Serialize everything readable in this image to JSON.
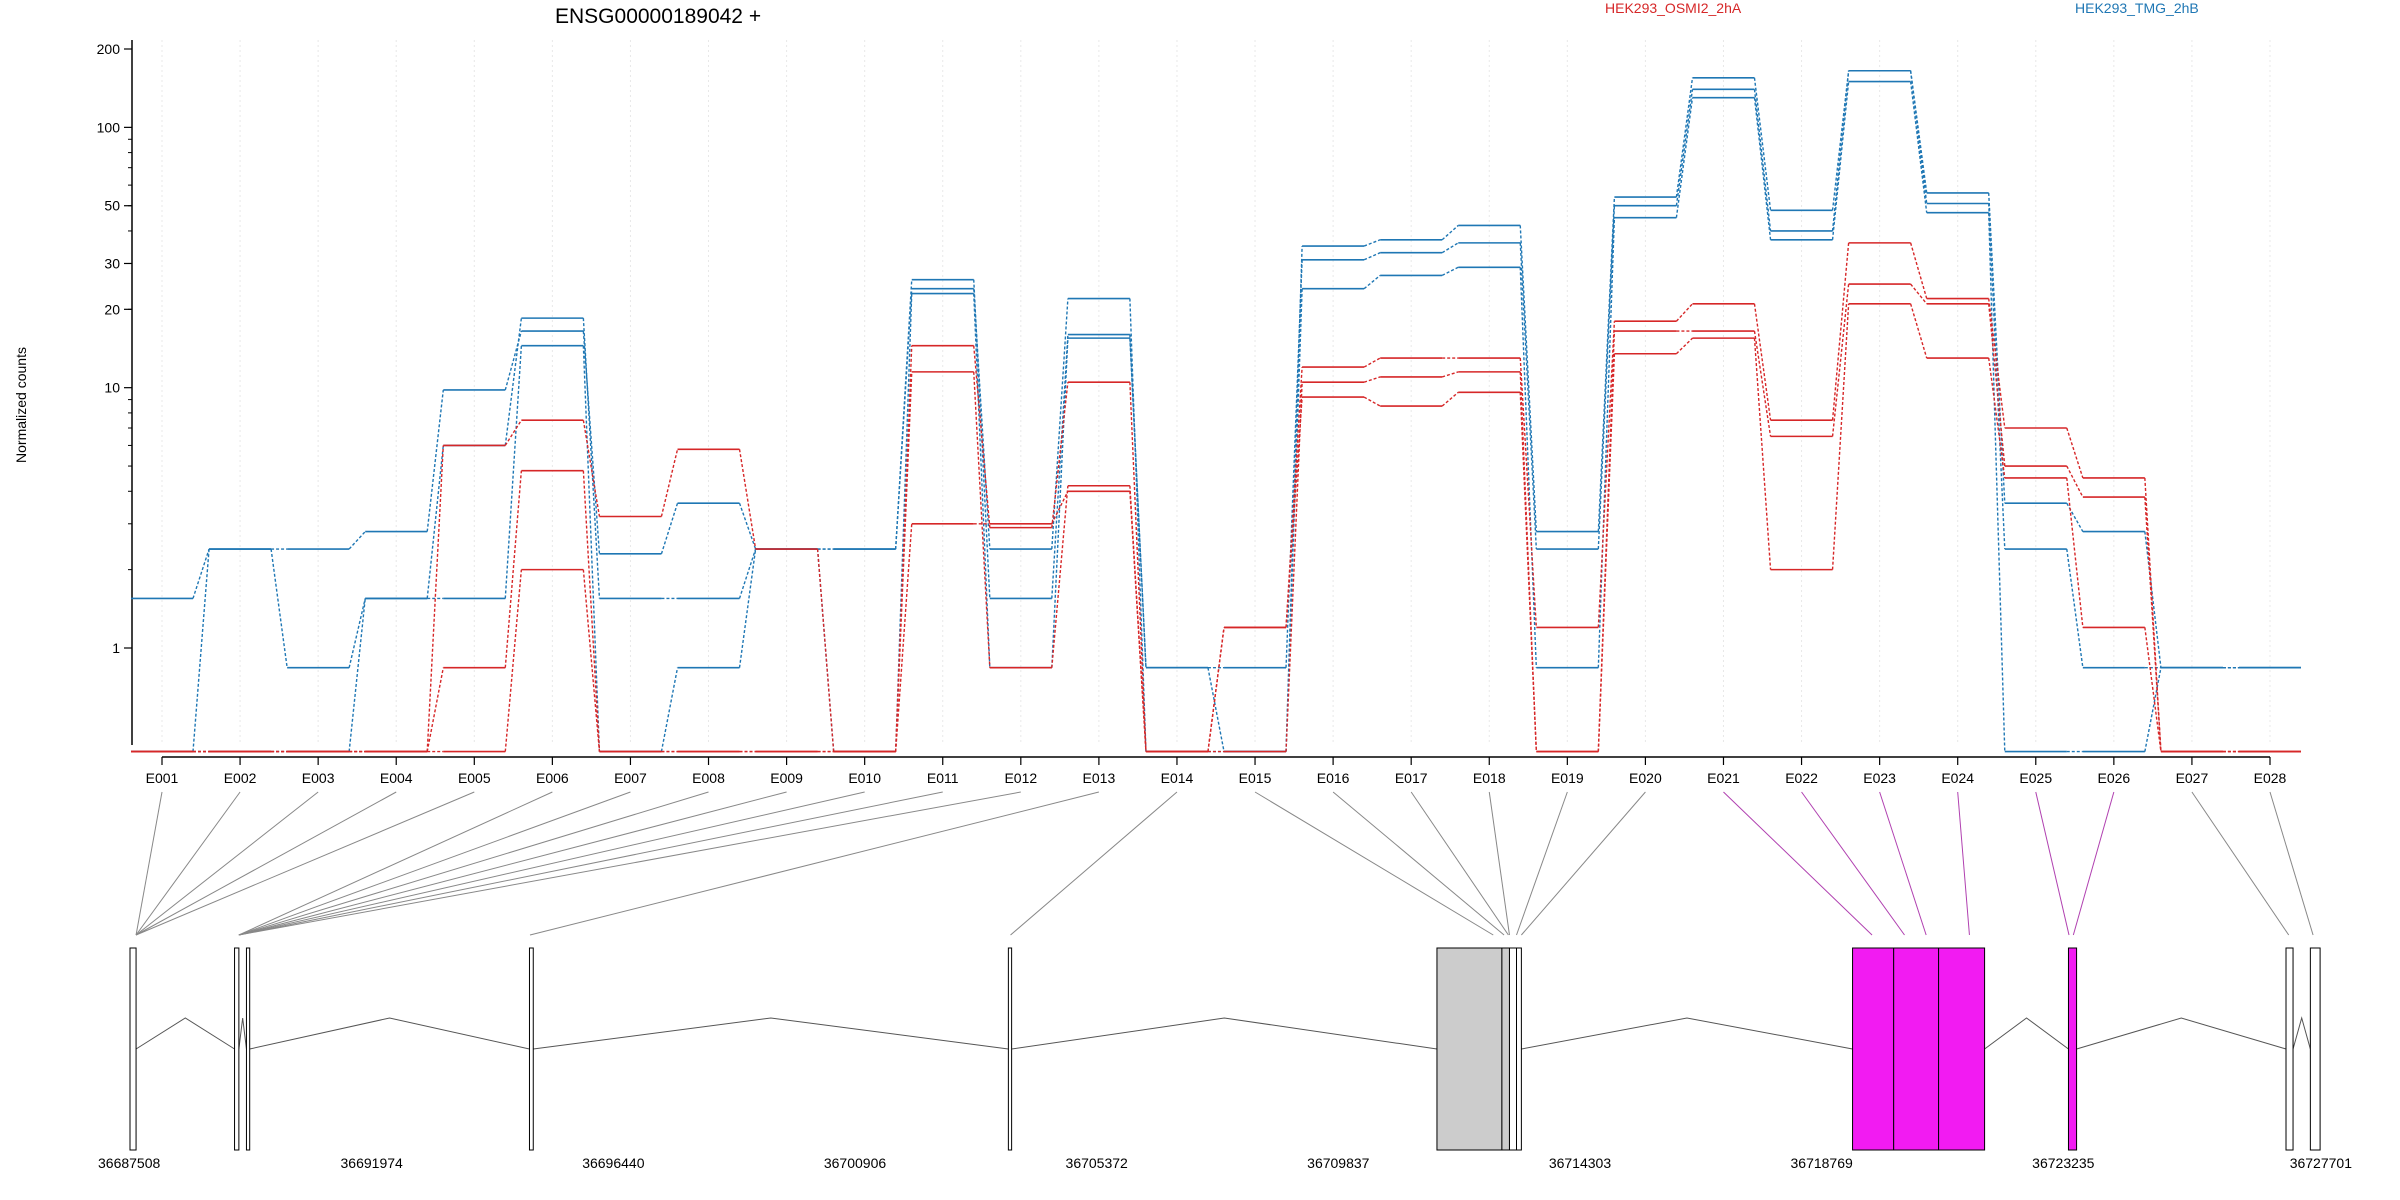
{
  "chart_data": {
    "type": "line",
    "title": "ENSG00000189042 +",
    "ylabel": "Normalized counts",
    "y_scale": "log",
    "y_ticks": [
      1,
      10,
      20,
      30,
      50,
      100,
      200
    ],
    "y_floor": 0.4,
    "groups": [
      {
        "name": "HEK293_OSMI2_2hA",
        "color": "#d62728"
      },
      {
        "name": "HEK293_TMG_2hB",
        "color": "#1f77b4"
      }
    ],
    "categories": [
      "E001",
      "E002",
      "E003",
      "E004",
      "E005",
      "E006",
      "E007",
      "E008",
      "E009",
      "E010",
      "E011",
      "E012",
      "E013",
      "E014",
      "E015",
      "E016",
      "E017",
      "E018",
      "E019",
      "E020",
      "E021",
      "E022",
      "E023",
      "E024",
      "E025",
      "E026",
      "E027",
      "E028"
    ],
    "series": [
      {
        "group": "HEK293_TMG_2hB",
        "values": [
          1.55,
          2.4,
          2.4,
          2.8,
          9.8,
          16.5,
          2.3,
          3.6,
          2.4,
          2.4,
          24,
          2.4,
          22,
          0.4,
          0.4,
          35,
          37,
          42,
          2.8,
          54,
          155,
          48,
          165,
          56,
          3.6,
          2.8,
          0.84,
          0.84
        ]
      },
      {
        "group": "HEK293_TMG_2hB",
        "values": [
          0.4,
          2.4,
          0.84,
          1.55,
          6.0,
          18.5,
          1.55,
          1.55,
          2.4,
          2.4,
          26,
          1.55,
          16,
          0.84,
          0.84,
          31,
          33,
          36,
          2.4,
          50,
          140,
          40,
          165,
          51,
          2.4,
          0.84,
          0.84,
          0.84
        ]
      },
      {
        "group": "HEK293_TMG_2hB",
        "values": [
          0.4,
          0.4,
          0.4,
          1.55,
          1.55,
          14.5,
          0.4,
          0.84,
          2.4,
          0.4,
          23,
          0.84,
          15.5,
          0.84,
          0.4,
          24,
          27,
          29,
          0.84,
          45,
          130,
          37,
          150,
          47,
          0.4,
          0.4,
          0.84,
          0.84
        ]
      },
      {
        "group": "HEK293_OSMI2_2hA",
        "values": [
          0.4,
          0.4,
          0.4,
          0.4,
          6.0,
          7.5,
          3.2,
          5.8,
          2.4,
          0.4,
          14.5,
          2.9,
          10.5,
          0.4,
          1.2,
          12,
          13,
          13,
          1.2,
          18,
          21,
          7.5,
          36,
          22,
          7.0,
          4.5,
          0.4,
          0.4
        ]
      },
      {
        "group": "HEK293_OSMI2_2hA",
        "values": [
          0.4,
          0.4,
          0.4,
          0.4,
          0.84,
          4.8,
          0.4,
          0.4,
          0.4,
          0.4,
          11.5,
          0.84,
          4.2,
          0.4,
          0.4,
          10.5,
          11,
          11.5,
          0.4,
          16.5,
          16.5,
          6.5,
          25,
          21,
          5.0,
          3.8,
          0.4,
          0.4
        ]
      },
      {
        "group": "HEK293_OSMI2_2hA",
        "values": [
          0.4,
          0.4,
          0.4,
          0.4,
          0.4,
          2.0,
          0.4,
          0.4,
          0.4,
          0.4,
          3.0,
          3.0,
          4.0,
          0.4,
          1.2,
          9.2,
          8.5,
          9.6,
          0.4,
          13.5,
          15.5,
          2.0,
          21,
          13,
          4.5,
          1.2,
          0.4,
          0.4
        ]
      }
    ],
    "genome_ticks": [
      "36687508",
      "36691974",
      "36696440",
      "36700906",
      "36705372",
      "36709837",
      "36714303",
      "36718769",
      "36723235",
      "36727701"
    ],
    "genome_range": [
      36687508,
      36727701
    ],
    "exons": [
      {
        "start": 36687508,
        "end": 36687620,
        "fill": "#ffffff"
      },
      {
        "start": 36689440,
        "end": 36689520,
        "fill": "#ffffff"
      },
      {
        "start": 36689660,
        "end": 36689720,
        "fill": "#ffffff"
      },
      {
        "start": 36694890,
        "end": 36694960,
        "fill": "#ffffff"
      },
      {
        "start": 36703740,
        "end": 36703800,
        "fill": "#ffffff"
      },
      {
        "start": 36711660,
        "end": 36712860,
        "fill": "#cccccc"
      },
      {
        "start": 36712860,
        "end": 36713000,
        "fill": "#cccccc"
      },
      {
        "start": 36713000,
        "end": 36713130,
        "fill": "#ffffff"
      },
      {
        "start": 36713130,
        "end": 36713220,
        "fill": "#ffffff"
      },
      {
        "start": 36719340,
        "end": 36720100,
        "fill": "#f21bf2"
      },
      {
        "start": 36720100,
        "end": 36720930,
        "fill": "#f21bf2"
      },
      {
        "start": 36720930,
        "end": 36721780,
        "fill": "#f21bf2"
      },
      {
        "start": 36723330,
        "end": 36723480,
        "fill": "#f21bf2"
      },
      {
        "start": 36727350,
        "end": 36727480,
        "fill": "#ffffff"
      },
      {
        "start": 36727800,
        "end": 36727980,
        "fill": "#ffffff"
      }
    ],
    "connector_targets": [
      36687620,
      36687620,
      36687620,
      36687620,
      36687620,
      36689520,
      36689520,
      36689520,
      36689520,
      36689520,
      36689520,
      36689520,
      36694900,
      36703780,
      36712700,
      36712900,
      36712980,
      36713000,
      36713130,
      36713220,
      36719700,
      36720300,
      36720700,
      36721500,
      36723340,
      36723420,
      36727400,
      36727850
    ],
    "connector_highlight": [
      false,
      false,
      false,
      false,
      false,
      false,
      false,
      false,
      false,
      false,
      false,
      false,
      false,
      false,
      false,
      false,
      false,
      false,
      false,
      false,
      true,
      true,
      true,
      true,
      true,
      true,
      false,
      false
    ],
    "colors": {
      "highlight_connector": "#b040b0",
      "connector": "#888888",
      "grid": "#e8e8e8"
    }
  }
}
